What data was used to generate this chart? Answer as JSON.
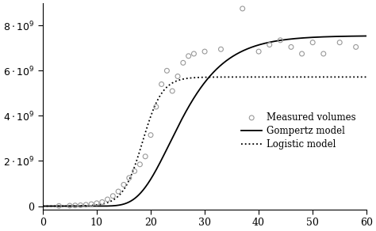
{
  "title": "",
  "xlabel": "",
  "ylabel": "",
  "xlim": [
    0,
    60
  ],
  "ylim": [
    -150000000.0,
    9000000000.0
  ],
  "yticks": [
    0,
    2000000000.0,
    4000000000.0,
    6000000000.0,
    8000000000.0
  ],
  "xticks": [
    0,
    10,
    20,
    30,
    40,
    50,
    60
  ],
  "gompertz_K": 7550000000.0,
  "gompertz_r": 0.175,
  "gompertz_t0": 23.5,
  "logistic_K": 5720000000.0,
  "logistic_r": 0.55,
  "logistic_t0": 18.5,
  "scatter_t": [
    3,
    5,
    6,
    7,
    8,
    9,
    10,
    11,
    12,
    13,
    14,
    15,
    16,
    17,
    18,
    19,
    20,
    21,
    22,
    23,
    24,
    25,
    26,
    27,
    28,
    30,
    33,
    37,
    40,
    42,
    44,
    46,
    48,
    50,
    52,
    55,
    58
  ],
  "scatter_v": [
    10000000.0,
    20000000.0,
    30000000.0,
    40000000.0,
    60000000.0,
    90000000.0,
    130000000.0,
    180000000.0,
    300000000.0,
    450000000.0,
    650000000.0,
    950000000.0,
    1250000000.0,
    1550000000.0,
    1850000000.0,
    2200000000.0,
    3150000000.0,
    4400000000.0,
    5400000000.0,
    6000000000.0,
    5100000000.0,
    5750000000.0,
    6350000000.0,
    6650000000.0,
    6750000000.0,
    6850000000.0,
    6950000000.0,
    8750000000.0,
    6850000000.0,
    7150000000.0,
    7350000000.0,
    7050000000.0,
    6750000000.0,
    7250000000.0,
    6750000000.0,
    7250000000.0,
    7050000000.0
  ],
  "line_color": "#000000",
  "scatter_color": "#999999",
  "figsize": [
    4.74,
    2.92
  ],
  "dpi": 100
}
